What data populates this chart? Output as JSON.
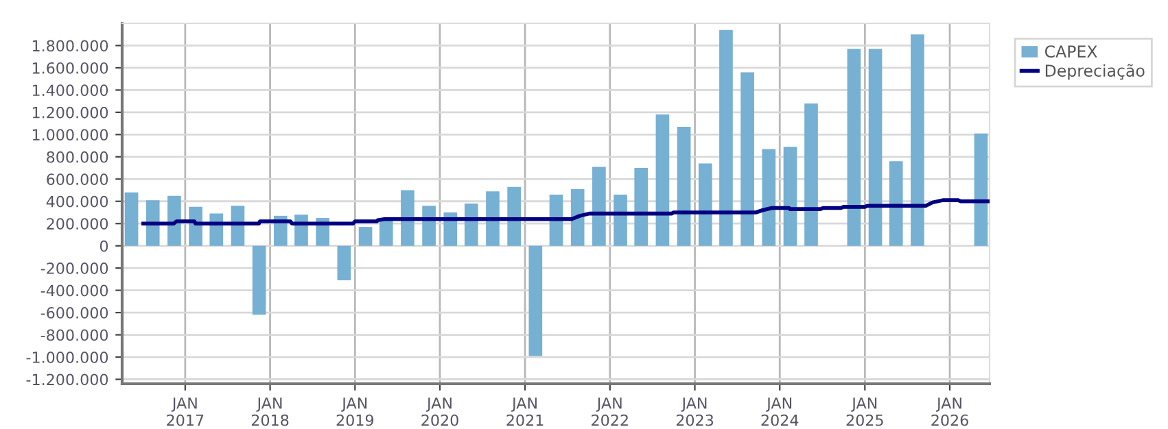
{
  "chart_data": {
    "type": "bar",
    "x": [
      "2016-05-15",
      "2016-08-15",
      "2016-11-15",
      "2017-02-15",
      "2017-05-15",
      "2017-08-15",
      "2017-11-15",
      "2018-02-15",
      "2018-05-15",
      "2018-08-15",
      "2018-11-15",
      "2019-02-15",
      "2019-05-15",
      "2019-08-15",
      "2019-11-15",
      "2020-02-15",
      "2020-05-15",
      "2020-08-15",
      "2020-11-15",
      "2021-02-15",
      "2021-05-15",
      "2021-08-15",
      "2021-11-15",
      "2022-02-15",
      "2022-05-15",
      "2022-08-15",
      "2022-11-15",
      "2023-02-15",
      "2023-05-15",
      "2023-08-15",
      "2023-11-15",
      "2024-02-15",
      "2024-05-15",
      "2024-08-15",
      "2024-11-15",
      "2025-02-15",
      "2025-05-15",
      "2025-08-15",
      "2025-11-15",
      "2026-02-15",
      "2026-05-15"
    ],
    "series": [
      {
        "name": "CAPEX",
        "color": "#76b0d3",
        "values": [
          480000,
          410000,
          450000,
          350000,
          290000,
          360000,
          -620000,
          270000,
          280000,
          250000,
          -310000,
          170000,
          250000,
          500000,
          360000,
          300000,
          380000,
          490000,
          530000,
          -990000,
          460000,
          510000,
          710000,
          460000,
          700000,
          1180000,
          1070000,
          740000,
          1940000,
          1560000,
          870000,
          890000,
          1280000,
          null,
          1770000,
          1770000,
          760000,
          1900000,
          null,
          null,
          1010000
        ]
      },
      {
        "name": "Depreciação",
        "type": "line",
        "color": "#000080",
        "x": [
          "2016-07-05",
          "2016-11-13",
          "2016-11-24",
          "2017-02-10",
          "2017-02-14",
          "2017-11-14",
          "2017-11-18",
          "2018-03-29",
          "2018-04-05",
          "2018-12-24",
          "2019-01-01",
          "2019-04-05",
          "2019-04-09",
          "2019-05-08",
          "2021-07-20",
          "2021-08-25",
          "2021-10-05",
          "2022-09-24",
          "2022-10-01",
          "2023-09-20",
          "2023-10-19",
          "2023-11-28",
          "2024-02-10",
          "2024-02-14",
          "2024-06-25",
          "2024-07-05",
          "2024-09-20",
          "2024-10-01",
          "2025-01-01",
          "2025-01-12",
          "2025-09-20",
          "2025-10-19",
          "2025-12-02",
          "2026-02-06",
          "2026-02-17",
          "2026-06-21"
        ],
        "values": [
          200000,
          200000,
          220000,
          220000,
          200000,
          200000,
          220000,
          220000,
          200000,
          200000,
          220000,
          220000,
          230000,
          240000,
          240000,
          270000,
          290000,
          290000,
          300000,
          300000,
          320000,
          340000,
          340000,
          330000,
          330000,
          340000,
          340000,
          350000,
          350000,
          360000,
          360000,
          390000,
          410000,
          410000,
          400000,
          400000
        ]
      }
    ],
    "xlim": [
      "2016-04-05",
      "2026-06-21"
    ],
    "xticks": [
      {
        "value": "2017-01-01",
        "label": "JAN\n2017"
      },
      {
        "value": "2018-01-01",
        "label": "JAN\n2018"
      },
      {
        "value": "2019-01-01",
        "label": "JAN\n2019"
      },
      {
        "value": "2020-01-01",
        "label": "JAN\n2020"
      },
      {
        "value": "2021-01-01",
        "label": "JAN\n2021"
      },
      {
        "value": "2022-01-01",
        "label": "JAN\n2022"
      },
      {
        "value": "2023-01-01",
        "label": "JAN\n2023"
      },
      {
        "value": "2024-01-01",
        "label": "JAN\n2024"
      },
      {
        "value": "2025-01-01",
        "label": "JAN\n2025"
      },
      {
        "value": "2026-01-01",
        "label": "JAN\n2026"
      }
    ],
    "ylim": [
      -1240000,
      2000000
    ],
    "yticks": [
      {
        "value": -1200000,
        "label": "-1.200.000"
      },
      {
        "value": -1000000,
        "label": "-1.000.000"
      },
      {
        "value": -800000,
        "label": "-800.000"
      },
      {
        "value": -600000,
        "label": "-600.000"
      },
      {
        "value": -400000,
        "label": "-400.000"
      },
      {
        "value": -200000,
        "label": "-200.000"
      },
      0,
      {
        "value": 200000,
        "label": "200.000"
      },
      {
        "value": 400000,
        "label": "400.000"
      },
      {
        "value": 600000,
        "label": "600.000"
      },
      {
        "value": 800000,
        "label": "800.000"
      },
      {
        "value": 1000000,
        "label": "1.000.000"
      },
      {
        "value": 1200000,
        "label": "1.200.000"
      },
      {
        "value": 1400000,
        "label": "1.400.000"
      },
      {
        "value": 1600000,
        "label": "1.600.000"
      },
      {
        "value": 1800000,
        "label": "1.800.000"
      }
    ],
    "grid": true,
    "legend": "top right"
  }
}
